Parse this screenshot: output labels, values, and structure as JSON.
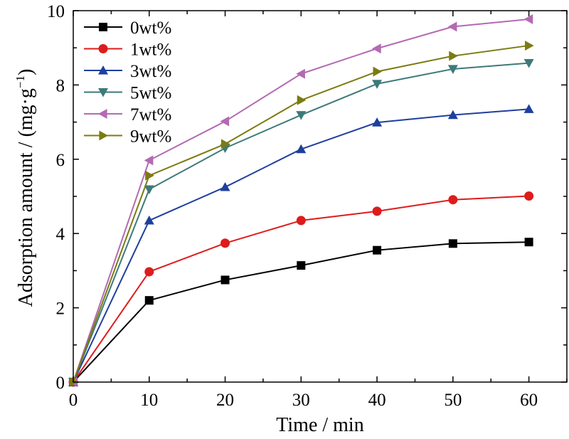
{
  "chart_data": {
    "type": "line",
    "title": "",
    "xlabel": "Time / min",
    "ylabel_main": "Adsorption amount / (mg·g",
    "ylabel_sup": "−1",
    "ylabel_end": ")",
    "xlim": [
      0,
      65
    ],
    "ylim": [
      0,
      10
    ],
    "xticks": [
      0,
      10,
      20,
      30,
      40,
      50,
      60
    ],
    "yticks": [
      0,
      2,
      4,
      6,
      8,
      10
    ],
    "grid": false,
    "legend_position": "top-left",
    "x": [
      0,
      10,
      20,
      30,
      40,
      50,
      60
    ],
    "series": [
      {
        "name": "0wt%",
        "color": "#000000",
        "marker": "square",
        "values": [
          0,
          2.2,
          2.75,
          3.14,
          3.55,
          3.73,
          3.77
        ]
      },
      {
        "name": "1wt%",
        "color": "#dd1c1c",
        "marker": "circle",
        "values": [
          0,
          2.97,
          3.74,
          4.35,
          4.6,
          4.91,
          5.01
        ]
      },
      {
        "name": "3wt%",
        "color": "#1f3f9e",
        "marker": "triangle-up",
        "values": [
          0,
          4.35,
          5.25,
          6.27,
          6.99,
          7.19,
          7.35
        ]
      },
      {
        "name": "5wt%",
        "color": "#3d7a7a",
        "marker": "triangle-down",
        "values": [
          0,
          5.19,
          6.3,
          7.19,
          8.03,
          8.43,
          8.59
        ]
      },
      {
        "name": "7wt%",
        "color": "#b36ab3",
        "marker": "triangle-left",
        "values": [
          0,
          5.97,
          7.02,
          8.3,
          8.98,
          9.57,
          9.77
        ]
      },
      {
        "name": "9wt%",
        "color": "#7b7b12",
        "marker": "triangle-right",
        "values": [
          0,
          5.56,
          6.41,
          7.59,
          8.36,
          8.78,
          9.06
        ]
      }
    ]
  }
}
